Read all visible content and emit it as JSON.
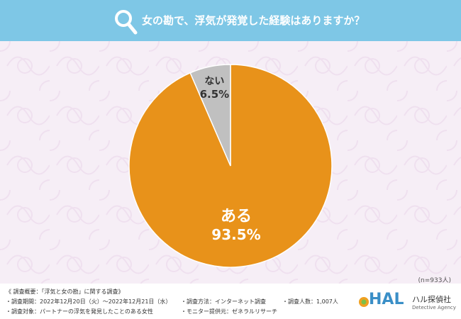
{
  "header": {
    "title": "女の勘で、浮気が発覚した経験はありますか？"
  },
  "chart_data": {
    "type": "pie",
    "title": "女の勘で、浮気が発覚した経験はありますか？",
    "slices": [
      {
        "label": "ある",
        "value": 93.5,
        "display": "93.5%",
        "color": "#e8921a"
      },
      {
        "label": "ない",
        "value": 6.5,
        "display": "6.5%",
        "color": "#c0c0c0"
      }
    ],
    "note": "(n=933人)"
  },
  "footer": {
    "overview": "《 調査概要：「浮気と女の勘」に関する調査》",
    "period": "・調査期間：2022年12月20日（火）～2022年12月21日（水）",
    "method": "・調査方法：インターネット調査",
    "count": "・調査人数：1,007人",
    "target": "・調査対象：パートナーの浮気を発見したことのある女性",
    "provider": "・モニター提供元：ゼネラルリサーチ"
  },
  "logo": {
    "mark": "HAL",
    "name_jp": "ハル探偵社",
    "name_en": "Detective Agency"
  }
}
